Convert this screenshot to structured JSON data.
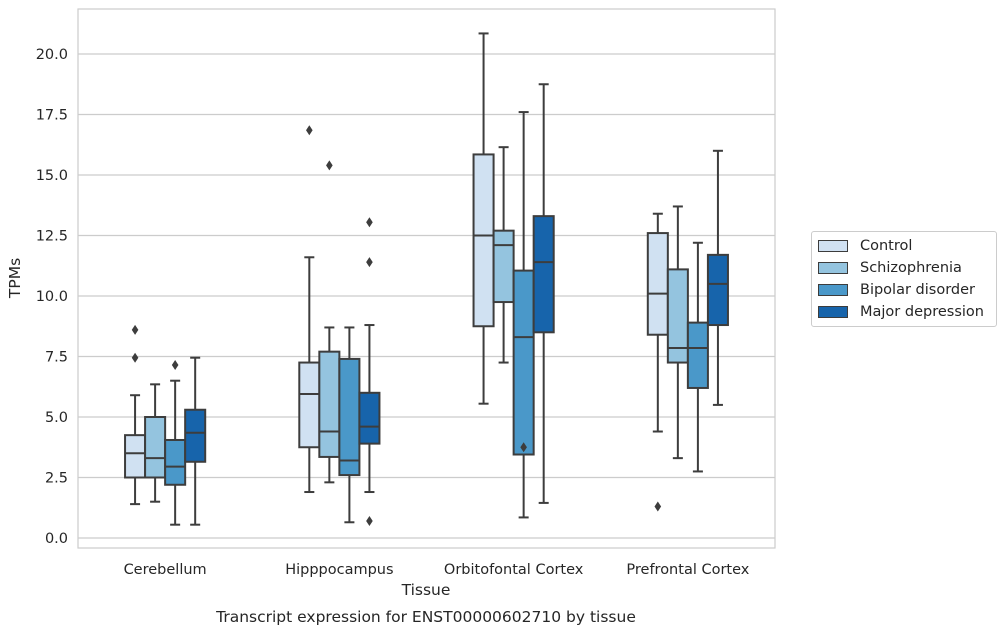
{
  "chart_data": {
    "type": "box",
    "title": "Transcript expression for ENST00000602710 by tissue",
    "xlabel": "Tissue",
    "ylabel": "TPMs",
    "ylim": [
      -0.4,
      21.8
    ],
    "yticks": [
      "0.0",
      "2.5",
      "5.0",
      "7.5",
      "10.0",
      "12.5",
      "15.0",
      "17.5",
      "20.0"
    ],
    "categories": [
      "Cerebellum",
      "Hipppocampus",
      "Orbitofontal Cortex",
      "Prefrontal Cortex"
    ],
    "grid": "horizontal",
    "legend_position": "right",
    "series": [
      {
        "name": "Control",
        "color": "#d0e1f2",
        "boxes": [
          {
            "whislo": 1.4,
            "q1": 2.5,
            "med": 3.5,
            "q3": 4.25,
            "whishi": 5.9,
            "fliers": [
              7.45,
              8.6
            ]
          },
          {
            "whislo": 1.9,
            "q1": 3.75,
            "med": 5.95,
            "q3": 7.25,
            "whishi": 11.6,
            "fliers": [
              16.85
            ]
          },
          {
            "whislo": 5.55,
            "q1": 8.75,
            "med": 12.5,
            "q3": 15.85,
            "whishi": 20.85,
            "fliers": []
          },
          {
            "whislo": 4.4,
            "q1": 8.4,
            "med": 10.1,
            "q3": 12.6,
            "whishi": 13.4,
            "fliers": [
              1.3
            ]
          }
        ]
      },
      {
        "name": "Schizophrenia",
        "color": "#94c4df",
        "boxes": [
          {
            "whislo": 1.5,
            "q1": 2.5,
            "med": 3.3,
            "q3": 5.0,
            "whishi": 6.35,
            "fliers": []
          },
          {
            "whislo": 2.3,
            "q1": 3.35,
            "med": 4.4,
            "q3": 7.7,
            "whishi": 8.7,
            "fliers": [
              15.4
            ]
          },
          {
            "whislo": 7.25,
            "q1": 9.75,
            "med": 12.1,
            "q3": 12.7,
            "whishi": 16.15,
            "fliers": []
          },
          {
            "whislo": 3.3,
            "q1": 7.25,
            "med": 7.85,
            "q3": 11.1,
            "whishi": 13.7,
            "fliers": []
          }
        ]
      },
      {
        "name": "Bipolar disorder",
        "color": "#4a98c9",
        "boxes": [
          {
            "whislo": 0.55,
            "q1": 2.2,
            "med": 2.95,
            "q3": 4.05,
            "whishi": 6.5,
            "fliers": [
              7.15
            ]
          },
          {
            "whislo": 0.65,
            "q1": 2.6,
            "med": 3.2,
            "q3": 7.4,
            "whishi": 8.7,
            "fliers": []
          },
          {
            "whislo": 0.85,
            "q1": 3.45,
            "med": 8.3,
            "q3": 11.05,
            "whishi": 17.6,
            "fliers": [
              3.75
            ]
          },
          {
            "whislo": 2.75,
            "q1": 6.2,
            "med": 7.85,
            "q3": 8.9,
            "whishi": 12.2,
            "fliers": []
          }
        ]
      },
      {
        "name": "Major depression",
        "color": "#1764ab",
        "boxes": [
          {
            "whislo": 0.55,
            "q1": 3.15,
            "med": 4.35,
            "q3": 5.3,
            "whishi": 7.45,
            "fliers": []
          },
          {
            "whislo": 1.9,
            "q1": 3.9,
            "med": 4.6,
            "q3": 6.0,
            "whishi": 8.8,
            "fliers": [
              0.7,
              11.4,
              13.05
            ]
          },
          {
            "whislo": 1.45,
            "q1": 8.5,
            "med": 11.4,
            "q3": 13.3,
            "whishi": 18.75,
            "fliers": []
          },
          {
            "whislo": 5.5,
            "q1": 8.8,
            "med": 10.5,
            "q3": 11.7,
            "whishi": 16.0,
            "fliers": []
          }
        ]
      }
    ]
  }
}
